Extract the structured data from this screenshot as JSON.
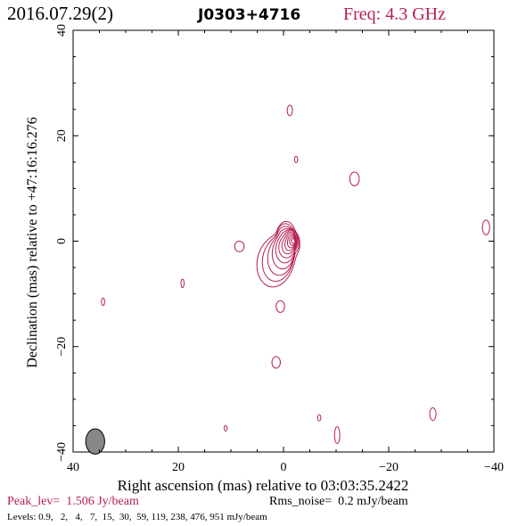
{
  "header": {
    "date": "2016.07.29(2)",
    "source": "J0303+4716",
    "freq": "Freq: 4.3 GHz"
  },
  "footer": {
    "peak": "Peak_lev=  1.506 Jy/beam",
    "rms": "Rms_noise=  0.2 mJy/beam",
    "levels": "Levels: 0.9,   2,   4,   7,  15,  30,  59, 119, 238, 476, 951 mJy/beam"
  },
  "colors": {
    "contour": "#b5204f",
    "axis": "#000000",
    "beam": "#888888"
  },
  "chart_data": {
    "type": "contour",
    "xlabel": "Right ascension (mas) relative to 03:03:35.2422",
    "ylabel": "Declination (mas) relative to +47:16:16.276",
    "xlim": [
      40,
      -40
    ],
    "ylim": [
      -40,
      40
    ],
    "x_ticks": [
      40,
      20,
      0,
      -20,
      -40
    ],
    "y_ticks": [
      -40,
      -20,
      0,
      20,
      40
    ],
    "x_tick_labels": [
      "40",
      "20",
      "0",
      "−20",
      "−40"
    ],
    "y_tick_labels": [
      "−40",
      "−20",
      "0",
      "20",
      "40"
    ],
    "core_center": [
      -0.5,
      0.0
    ],
    "core_levels": 11,
    "beam": {
      "x": 35.8,
      "y": -38.0,
      "major": 2.4,
      "minor": 1.8
    },
    "islands": [
      {
        "x": -1.2,
        "y": 24.8,
        "rx": 0.5,
        "ry": 1.0
      },
      {
        "x": -2.4,
        "y": 15.5,
        "rx": 0.3,
        "ry": 0.6
      },
      {
        "x": -13.5,
        "y": 11.8,
        "rx": 0.9,
        "ry": 1.3
      },
      {
        "x": -38.5,
        "y": 2.6,
        "rx": 0.7,
        "ry": 1.4
      },
      {
        "x": 8.4,
        "y": -1.0,
        "rx": 0.9,
        "ry": 1.0
      },
      {
        "x": 19.2,
        "y": -8.0,
        "rx": 0.3,
        "ry": 0.8
      },
      {
        "x": 34.3,
        "y": -11.5,
        "rx": 0.3,
        "ry": 0.7
      },
      {
        "x": 0.6,
        "y": -12.4,
        "rx": 0.8,
        "ry": 1.1
      },
      {
        "x": 1.4,
        "y": -23.0,
        "rx": 0.8,
        "ry": 1.1
      },
      {
        "x": -6.8,
        "y": -33.5,
        "rx": 0.3,
        "ry": 0.6
      },
      {
        "x": -28.4,
        "y": -32.8,
        "rx": 0.6,
        "ry": 1.2
      },
      {
        "x": 11.0,
        "y": -35.5,
        "rx": 0.3,
        "ry": 0.5
      },
      {
        "x": -10.2,
        "y": -36.8,
        "rx": 0.5,
        "ry": 1.6
      }
    ]
  }
}
